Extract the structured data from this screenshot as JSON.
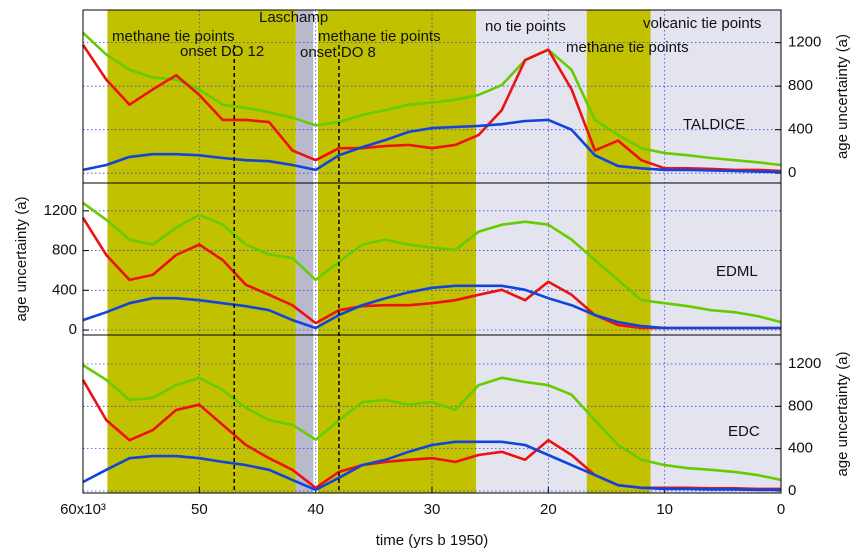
{
  "chart_data": [
    {
      "type": "line",
      "label": "TALDICE",
      "ylabel": "age uncertainty (a)",
      "yaxis_side": "right",
      "xlim": [
        60000,
        0
      ],
      "ylim": [
        -90,
        1500
      ],
      "yticks": [
        0,
        400,
        800,
        1200
      ],
      "grid": true,
      "x": [
        60000,
        58000,
        56000,
        54000,
        52000,
        50000,
        48000,
        46000,
        44000,
        42000,
        40000,
        38000,
        36000,
        34000,
        32000,
        30000,
        28000,
        26000,
        24000,
        22000,
        20000,
        18000,
        16000,
        14000,
        12000,
        10000,
        8000,
        6000,
        4000,
        2000,
        0
      ],
      "regions": [
        {
          "start": 57900,
          "end": 41700,
          "color": "#c1c100"
        },
        {
          "start": 41700,
          "end": 40200,
          "color": "#b9b9cb"
        },
        {
          "start": 39800,
          "end": 26200,
          "color": "#c1c100"
        },
        {
          "start": 26200,
          "end": 16700,
          "color": "#e4e4ee"
        },
        {
          "start": 16700,
          "end": 11200,
          "color": "#c1c100"
        },
        {
          "start": 11200,
          "end": 0,
          "color": "#e4e4ee"
        }
      ],
      "dashed_lines": [
        47000,
        38000
      ],
      "annotations": [
        "methane tie points",
        "onset DO 12",
        "Laschamp",
        "onset DO 8",
        "methane tie points",
        "no tie points",
        "methane tie points",
        "volcanic tie points"
      ],
      "series": [
        {
          "color": "#66cc00",
          "values": [
            1290,
            1090,
            950,
            880,
            860,
            770,
            630,
            600,
            560,
            510,
            440,
            470,
            535,
            580,
            630,
            650,
            675,
            720,
            810,
            1040,
            1135,
            950,
            490,
            350,
            230,
            185,
            165,
            140,
            120,
            100,
            75
          ]
        },
        {
          "color": "#ee1111",
          "values": [
            1180,
            860,
            630,
            770,
            900,
            720,
            490,
            490,
            470,
            210,
            120,
            230,
            230,
            250,
            260,
            230,
            260,
            350,
            580,
            1040,
            1135,
            770,
            210,
            300,
            120,
            45,
            45,
            40,
            30,
            30,
            20
          ]
        },
        {
          "color": "#1144dd",
          "values": [
            30,
            75,
            150,
            175,
            175,
            165,
            140,
            120,
            110,
            75,
            30,
            165,
            240,
            305,
            380,
            415,
            425,
            435,
            450,
            480,
            490,
            400,
            165,
            65,
            45,
            30,
            30,
            25,
            20,
            15,
            10
          ]
        }
      ]
    },
    {
      "type": "line",
      "label": "EDML",
      "ylabel": "age uncertainty (a)",
      "yaxis_side": "left",
      "xlim": [
        60000,
        0
      ],
      "ylim": [
        -50,
        1480
      ],
      "yticks": [
        0,
        400,
        800,
        1200
      ],
      "grid": true,
      "x": [
        60000,
        58000,
        56000,
        54000,
        52000,
        50000,
        48000,
        46000,
        44000,
        42000,
        40000,
        38000,
        36000,
        34000,
        32000,
        30000,
        28000,
        26000,
        24000,
        22000,
        20000,
        18000,
        16000,
        14000,
        12000,
        10000,
        8000,
        6000,
        4000,
        2000,
        0
      ],
      "series": [
        {
          "color": "#66cc00",
          "values": [
            1280,
            1110,
            910,
            860,
            1030,
            1160,
            1060,
            860,
            760,
            725,
            505,
            685,
            860,
            910,
            860,
            830,
            805,
            990,
            1060,
            1090,
            1060,
            910,
            705,
            505,
            300,
            270,
            240,
            200,
            180,
            140,
            80
          ]
        },
        {
          "color": "#ee1111",
          "values": [
            1130,
            755,
            505,
            555,
            755,
            860,
            705,
            455,
            355,
            250,
            70,
            200,
            240,
            250,
            250,
            270,
            300,
            355,
            405,
            300,
            485,
            355,
            150,
            50,
            20,
            20,
            20,
            20,
            20,
            20,
            20
          ]
        },
        {
          "color": "#1144dd",
          "values": [
            100,
            180,
            270,
            320,
            320,
            300,
            270,
            240,
            200,
            100,
            20,
            150,
            250,
            320,
            380,
            425,
            445,
            445,
            445,
            405,
            320,
            250,
            150,
            80,
            40,
            20,
            20,
            20,
            20,
            20,
            20
          ]
        }
      ]
    },
    {
      "type": "line",
      "label": "EDC",
      "ylabel": "age uncertainty (a)",
      "yaxis_side": "right",
      "xlim": [
        60000,
        0
      ],
      "ylim": [
        -19,
        1474
      ],
      "yticks": [
        0,
        400,
        800,
        1200
      ],
      "grid": true,
      "xlabel": "time (yrs b 1950)",
      "xticks": [
        {
          "value": 60000,
          "label": "60x10³"
        },
        {
          "value": 50000,
          "label": "50"
        },
        {
          "value": 40000,
          "label": "40"
        },
        {
          "value": 30000,
          "label": "30"
        },
        {
          "value": 20000,
          "label": "20"
        },
        {
          "value": 10000,
          "label": "10"
        },
        0
      ],
      "x": [
        60000,
        58000,
        56000,
        54000,
        52000,
        50000,
        48000,
        46000,
        44000,
        42000,
        40000,
        38000,
        36000,
        34000,
        32000,
        30000,
        28000,
        26000,
        24000,
        22000,
        20000,
        18000,
        16000,
        14000,
        12000,
        10000,
        8000,
        6000,
        4000,
        2000,
        0
      ],
      "series": [
        {
          "color": "#66cc00",
          "values": [
            1190,
            1050,
            860,
            880,
            1000,
            1070,
            955,
            785,
            670,
            625,
            485,
            670,
            840,
            860,
            815,
            840,
            765,
            1000,
            1070,
            1030,
            1000,
            910,
            670,
            435,
            295,
            245,
            215,
            200,
            180,
            150,
            105
          ]
        },
        {
          "color": "#ee1111",
          "values": [
            1050,
            670,
            480,
            575,
            765,
            815,
            625,
            435,
            310,
            200,
            30,
            180,
            245,
            275,
            295,
            310,
            275,
            340,
            370,
            295,
            480,
            340,
            150,
            55,
            30,
            30,
            30,
            25,
            25,
            20,
            20
          ]
        },
        {
          "color": "#1144dd",
          "values": [
            85,
            200,
            310,
            330,
            330,
            310,
            275,
            245,
            200,
            105,
            10,
            125,
            245,
            295,
            370,
            435,
            465,
            465,
            465,
            435,
            340,
            245,
            150,
            55,
            30,
            20,
            20,
            15,
            15,
            10,
            10
          ]
        }
      ]
    }
  ]
}
